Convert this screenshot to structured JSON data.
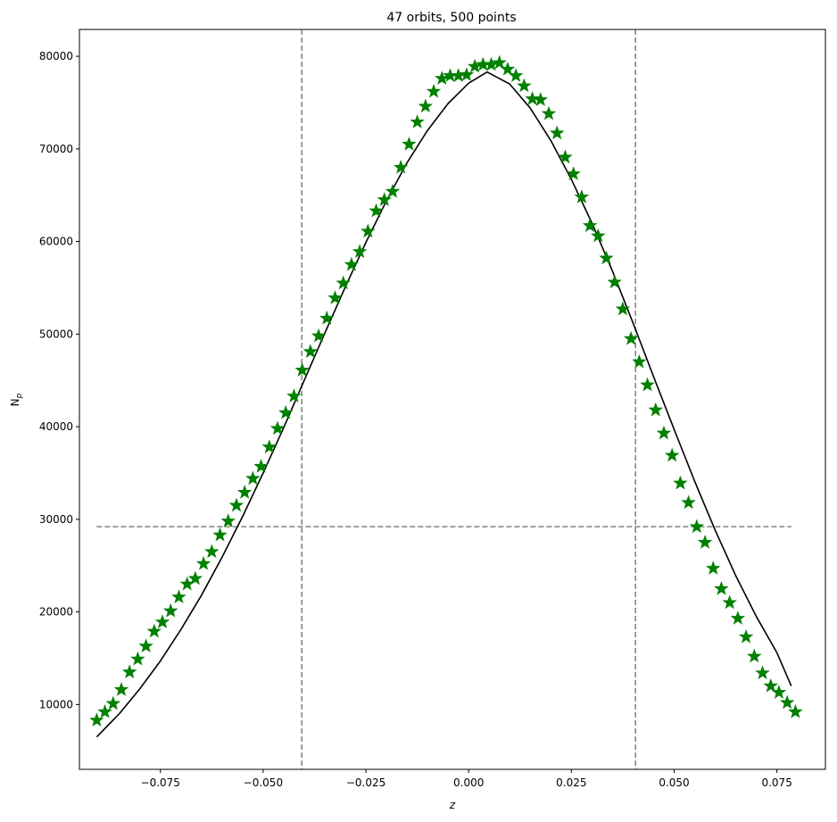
{
  "chart_data": {
    "type": "scatter",
    "title": "47 orbits, 500 points",
    "xlabel": "z",
    "ylabel": "N",
    "ylabel_sub": "p",
    "xlim": [
      -0.0947,
      0.0868
    ],
    "ylim": [
      3000,
      82900
    ],
    "xticks": [
      -0.075,
      -0.05,
      -0.025,
      0.0,
      0.025,
      0.05,
      0.075
    ],
    "xtick_labels": [
      "−0.075",
      "−0.050",
      "−0.025",
      "0.000",
      "0.025",
      "0.050",
      "0.075"
    ],
    "yticks": [
      10000,
      20000,
      30000,
      40000,
      50000,
      60000,
      70000,
      80000
    ],
    "ytick_labels": [
      "10000",
      "20000",
      "30000",
      "40000",
      "50000",
      "60000",
      "70000",
      "80000"
    ],
    "grid": false,
    "legend": "none",
    "marker_color": "#008000",
    "curve_color": "#000000",
    "reference_line_color": "#808080",
    "vertical_reference_lines": [
      -0.0406,
      0.0406
    ],
    "horizontal_reference_line": {
      "y": 29200,
      "x_start": -0.0905,
      "x_end": 0.0785
    },
    "points": [
      [
        -0.0905,
        8300
      ],
      [
        -0.0885,
        9200
      ],
      [
        -0.0865,
        10100
      ],
      [
        -0.0845,
        11600
      ],
      [
        -0.0825,
        13500
      ],
      [
        -0.0805,
        14900
      ],
      [
        -0.0785,
        16300
      ],
      [
        -0.0765,
        17900
      ],
      [
        -0.0745,
        18900
      ],
      [
        -0.0725,
        20100
      ],
      [
        -0.0705,
        21600
      ],
      [
        -0.0685,
        23000
      ],
      [
        -0.0665,
        23600
      ],
      [
        -0.0645,
        25200
      ],
      [
        -0.0625,
        26500
      ],
      [
        -0.0605,
        28300
      ],
      [
        -0.0585,
        29800
      ],
      [
        -0.0565,
        31500
      ],
      [
        -0.0545,
        32900
      ],
      [
        -0.0525,
        34400
      ],
      [
        -0.0505,
        35700
      ],
      [
        -0.0485,
        37800
      ],
      [
        -0.0465,
        39800
      ],
      [
        -0.0445,
        41500
      ],
      [
        -0.0425,
        43300
      ],
      [
        -0.0405,
        46100
      ],
      [
        -0.0385,
        48100
      ],
      [
        -0.0365,
        49800
      ],
      [
        -0.0345,
        51700
      ],
      [
        -0.0325,
        53900
      ],
      [
        -0.0305,
        55500
      ],
      [
        -0.0285,
        57500
      ],
      [
        -0.0265,
        58900
      ],
      [
        -0.0245,
        61100
      ],
      [
        -0.0225,
        63300
      ],
      [
        -0.0205,
        64500
      ],
      [
        -0.0185,
        65400
      ],
      [
        -0.0165,
        68000
      ],
      [
        -0.0145,
        70500
      ],
      [
        -0.0125,
        72900
      ],
      [
        -0.0105,
        74600
      ],
      [
        -0.0085,
        76200
      ],
      [
        -0.0065,
        77600
      ],
      [
        -0.0045,
        77900
      ],
      [
        -0.0025,
        77900
      ],
      [
        -0.0005,
        78000
      ],
      [
        0.0015,
        78900
      ],
      [
        0.0035,
        79100
      ],
      [
        0.0055,
        79100
      ],
      [
        0.0075,
        79300
      ],
      [
        0.0095,
        78600
      ],
      [
        0.0115,
        77900
      ],
      [
        0.0135,
        76800
      ],
      [
        0.0155,
        75400
      ],
      [
        0.0175,
        75300
      ],
      [
        0.0195,
        73800
      ],
      [
        0.0215,
        71700
      ],
      [
        0.0235,
        69100
      ],
      [
        0.0255,
        67300
      ],
      [
        0.0275,
        64800
      ],
      [
        0.0295,
        61700
      ],
      [
        0.0315,
        60600
      ],
      [
        0.0335,
        58200
      ],
      [
        0.0355,
        55600
      ],
      [
        0.0375,
        52700
      ],
      [
        0.0395,
        49500
      ],
      [
        0.0415,
        47000
      ],
      [
        0.0435,
        44500
      ],
      [
        0.0455,
        41800
      ],
      [
        0.0475,
        39300
      ],
      [
        0.0495,
        36900
      ],
      [
        0.0515,
        33900
      ],
      [
        0.0535,
        31800
      ],
      [
        0.0555,
        29200
      ],
      [
        0.0575,
        27500
      ],
      [
        0.0595,
        24700
      ],
      [
        0.0615,
        22500
      ],
      [
        0.0635,
        21000
      ],
      [
        0.0655,
        19300
      ],
      [
        0.0675,
        17300
      ],
      [
        0.0695,
        15200
      ],
      [
        0.0715,
        13400
      ],
      [
        0.0735,
        12000
      ],
      [
        0.0755,
        11300
      ],
      [
        0.0775,
        10200
      ],
      [
        0.0795,
        9200
      ]
    ],
    "curve": [
      [
        -0.0905,
        6500
      ],
      [
        -0.085,
        9000
      ],
      [
        -0.08,
        11700
      ],
      [
        -0.075,
        14700
      ],
      [
        -0.07,
        18100
      ],
      [
        -0.065,
        21800
      ],
      [
        -0.06,
        25900
      ],
      [
        -0.055,
        30300
      ],
      [
        -0.05,
        35000
      ],
      [
        -0.045,
        39900
      ],
      [
        -0.04,
        45000
      ],
      [
        -0.035,
        50100
      ],
      [
        -0.03,
        55100
      ],
      [
        -0.025,
        59900
      ],
      [
        -0.02,
        64400
      ],
      [
        -0.015,
        68500
      ],
      [
        -0.01,
        72000
      ],
      [
        -0.005,
        74900
      ],
      [
        0.0,
        77100
      ],
      [
        0.0045,
        78300
      ],
      [
        0.01,
        77000
      ],
      [
        0.015,
        74400
      ],
      [
        0.02,
        70900
      ],
      [
        0.025,
        66700
      ],
      [
        0.03,
        62000
      ],
      [
        0.035,
        56800
      ],
      [
        0.04,
        51200
      ],
      [
        0.045,
        45400
      ],
      [
        0.05,
        39700
      ],
      [
        0.055,
        34100
      ],
      [
        0.06,
        28800
      ],
      [
        0.065,
        23900
      ],
      [
        0.07,
        19500
      ],
      [
        0.075,
        15600
      ],
      [
        0.0785,
        12000
      ]
    ]
  }
}
